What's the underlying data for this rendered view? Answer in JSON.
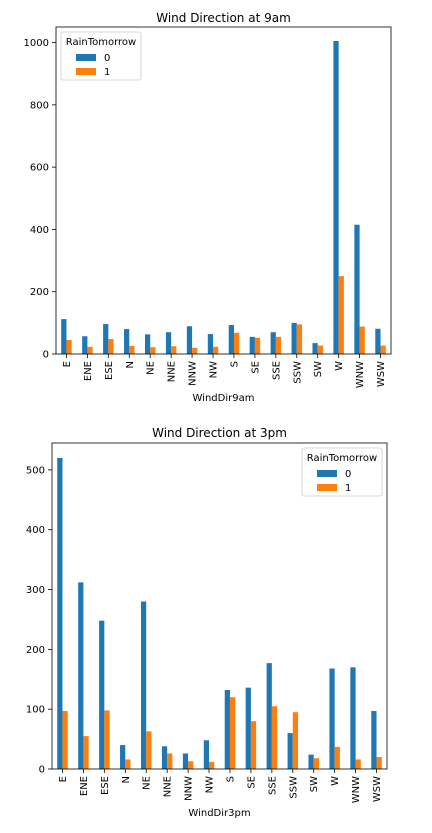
{
  "chart_data": [
    {
      "type": "bar",
      "title": "Wind Direction at 9am",
      "xlabel": "WindDir9am",
      "ylabel": "",
      "ylim": [
        0,
        1050
      ],
      "yticks": [
        0,
        200,
        400,
        600,
        800,
        1000
      ],
      "categories": [
        "E",
        "ENE",
        "ESE",
        "N",
        "NE",
        "NNE",
        "NNW",
        "NW",
        "S",
        "SE",
        "SSE",
        "SSW",
        "SW",
        "W",
        "WNW",
        "WSW"
      ],
      "legend": {
        "title": "RainTomorrow",
        "position": "top-left"
      },
      "series": [
        {
          "name": "0",
          "color": "#1f77b4",
          "values": [
            112,
            57,
            96,
            80,
            63,
            70,
            89,
            64,
            93,
            55,
            70,
            100,
            35,
            1005,
            415,
            81
          ]
        },
        {
          "name": "1",
          "color": "#ff7f0e",
          "values": [
            45,
            23,
            48,
            26,
            22,
            25,
            20,
            23,
            68,
            52,
            55,
            95,
            27,
            250,
            88,
            27
          ]
        }
      ]
    },
    {
      "type": "bar",
      "title": "Wind Direction at 3pm",
      "xlabel": "WindDir3pm",
      "ylabel": "",
      "ylim": [
        0,
        545
      ],
      "yticks": [
        0,
        100,
        200,
        300,
        400,
        500
      ],
      "categories": [
        "E",
        "ENE",
        "ESE",
        "N",
        "NE",
        "NNE",
        "NNW",
        "NW",
        "S",
        "SE",
        "SSE",
        "SSW",
        "SW",
        "W",
        "WNW",
        "WSW"
      ],
      "legend": {
        "title": "RainTomorrow",
        "position": "top-right"
      },
      "series": [
        {
          "name": "0",
          "color": "#1f77b4",
          "values": [
            520,
            312,
            248,
            40,
            280,
            38,
            26,
            48,
            132,
            136,
            177,
            60,
            24,
            168,
            170,
            97
          ]
        },
        {
          "name": "1",
          "color": "#ff7f0e",
          "values": [
            97,
            55,
            98,
            16,
            63,
            26,
            13,
            12,
            120,
            80,
            105,
            95,
            18,
            37,
            16,
            20
          ]
        }
      ]
    }
  ]
}
